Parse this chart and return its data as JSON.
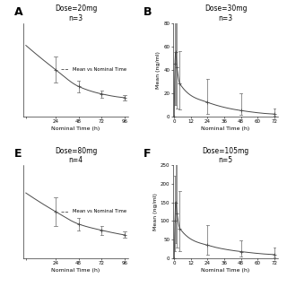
{
  "panels": [
    {
      "label": "A",
      "label_side": "left",
      "title": "Dose=20mg",
      "subtitle": "n=3",
      "type": "flat",
      "time_points": [
        -7,
        24,
        48,
        72,
        96
      ],
      "mean": [
        3.8,
        2.5,
        1.6,
        1.2,
        1.0
      ],
      "sd_upper": [
        0.0,
        0.7,
        0.3,
        0.2,
        0.15
      ],
      "sd_lower": [
        0.0,
        0.7,
        0.3,
        0.2,
        0.15
      ],
      "xlim": [
        -10,
        100
      ],
      "ylim": [
        0,
        5
      ],
      "ylabel": "",
      "xlabel": "Nominal Time (h)",
      "xticks": [
        -7,
        24,
        48,
        72,
        96
      ],
      "xtick_labels": [
        "",
        "24",
        "48",
        "72",
        "96"
      ],
      "yticks": [],
      "legend": "--- Mean vs Nominal Time",
      "show_legend": true
    },
    {
      "label": "B",
      "label_side": "right_of_left",
      "title": "Dose=30mg",
      "subtitle": "n=3",
      "type": "peak",
      "time_points": [
        0,
        0.5,
        1,
        2,
        4,
        24,
        48,
        72
      ],
      "mean": [
        0,
        45,
        55,
        42,
        28,
        12,
        5,
        2
      ],
      "sd_upper": [
        0,
        45,
        55,
        42,
        28,
        20,
        15,
        5
      ],
      "sd_lower": [
        0,
        35,
        45,
        35,
        22,
        10,
        4,
        1.5
      ],
      "xlim": [
        -1,
        75
      ],
      "ylim": [
        0,
        80
      ],
      "ylabel": "Mean (ng/ml)",
      "xlabel": "Nominal Time (h)",
      "xticks": [
        0,
        12,
        24,
        36,
        48,
        60,
        72
      ],
      "xtick_labels": [
        "0",
        "12",
        "24",
        "36",
        "48",
        "60",
        "72"
      ],
      "yticks": [
        0,
        20,
        40,
        60,
        80
      ],
      "legend": null,
      "show_legend": false
    },
    {
      "label": "E",
      "label_side": "left",
      "title": "Dose=80mg",
      "subtitle": "n=4",
      "type": "flat",
      "time_points": [
        -7,
        24,
        48,
        72,
        96
      ],
      "mean": [
        4.2,
        3.0,
        2.2,
        1.8,
        1.5
      ],
      "sd_upper": [
        0.0,
        0.9,
        0.4,
        0.3,
        0.2
      ],
      "sd_lower": [
        0.0,
        0.9,
        0.4,
        0.3,
        0.2
      ],
      "xlim": [
        -10,
        100
      ],
      "ylim": [
        0,
        6
      ],
      "ylabel": "",
      "xlabel": "Nominal Time (h)",
      "xticks": [
        -7,
        24,
        48,
        72,
        96
      ],
      "xtick_labels": [
        "",
        "24",
        "48",
        "72",
        "96"
      ],
      "yticks": [],
      "legend": "--- Mean vs Nominal Time",
      "show_legend": true
    },
    {
      "label": "F",
      "label_side": "right_of_left",
      "title": "Dose=105mg",
      "subtitle": "n=5",
      "type": "peak",
      "time_points": [
        0,
        0.5,
        1,
        2,
        4,
        24,
        48,
        72
      ],
      "mean": [
        0,
        100,
        150,
        120,
        80,
        35,
        18,
        10
      ],
      "sd_upper": [
        0,
        120,
        180,
        150,
        100,
        55,
        30,
        18
      ],
      "sd_lower": [
        0,
        80,
        110,
        90,
        60,
        25,
        12,
        7
      ],
      "xlim": [
        -1,
        75
      ],
      "ylim": [
        0,
        250
      ],
      "ylabel": "Mean (ng/ml)",
      "xlabel": "Nominal Time (h)",
      "xticks": [
        0,
        12,
        24,
        36,
        48,
        60,
        72
      ],
      "xtick_labels": [
        "0",
        "12",
        "24",
        "36",
        "48",
        "60",
        "72"
      ],
      "yticks": [
        0,
        50,
        100,
        150,
        200,
        250
      ],
      "legend": null,
      "show_legend": false
    }
  ],
  "bg_color": "#ffffff",
  "line_color": "#4a4a4a",
  "error_color": "#808080",
  "title_fontsize": 5.5,
  "label_fontsize": 4.5,
  "tick_fontsize": 4,
  "legend_fontsize": 3.8,
  "panel_label_fontsize": 9
}
